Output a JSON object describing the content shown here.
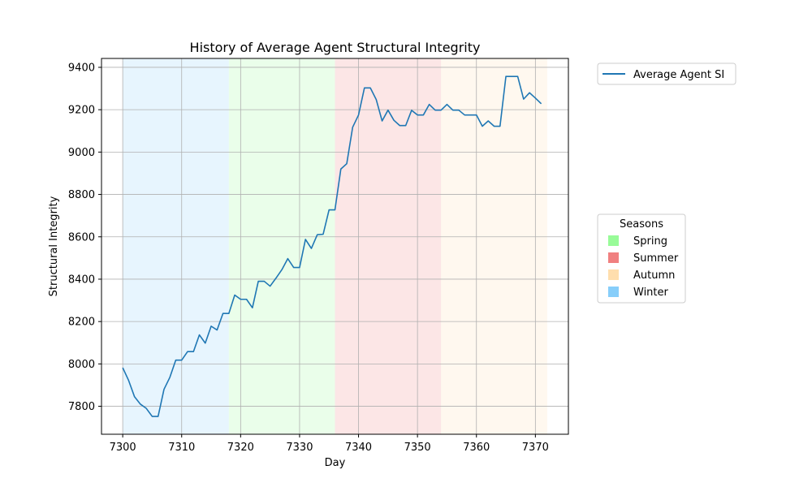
{
  "chart_data": {
    "type": "line",
    "title": "History of Average Agent Structural Integrity",
    "xlabel": "Day",
    "ylabel": "Structural Integrity",
    "xlim": [
      7296.4,
      7375.6
    ],
    "ylim": [
      7668,
      9442
    ],
    "xticks": [
      7300,
      7310,
      7320,
      7330,
      7340,
      7350,
      7360,
      7370
    ],
    "yticks": [
      7800,
      8000,
      8200,
      8400,
      8600,
      8800,
      9000,
      9200,
      9400
    ],
    "grid": true,
    "series": [
      {
        "name": "Average Agent SI",
        "color": "#1f77b4",
        "x": [
          7300,
          7301,
          7302,
          7303,
          7304,
          7305,
          7306,
          7307,
          7308,
          7309,
          7310,
          7311,
          7312,
          7313,
          7314,
          7315,
          7316,
          7317,
          7318,
          7319,
          7320,
          7321,
          7322,
          7323,
          7324,
          7325,
          7326,
          7327,
          7328,
          7329,
          7330,
          7331,
          7332,
          7333,
          7334,
          7335,
          7336,
          7337,
          7338,
          7339,
          7340,
          7341,
          7342,
          7343,
          7344,
          7345,
          7346,
          7347,
          7348,
          7349,
          7350,
          7351,
          7352,
          7353,
          7354,
          7355,
          7356,
          7357,
          7358,
          7359,
          7360,
          7361,
          7362,
          7363,
          7364,
          7365,
          7366,
          7367,
          7368,
          7369,
          7370,
          7371
        ],
        "y": [
          7982,
          7922,
          7845,
          7810,
          7790,
          7752,
          7752,
          7880,
          7937,
          8018,
          8018,
          8058,
          8058,
          8137,
          8098,
          8178,
          8160,
          8238,
          8238,
          8325,
          8305,
          8305,
          8265,
          8390,
          8390,
          8367,
          8405,
          8445,
          8497,
          8455,
          8455,
          8588,
          8545,
          8610,
          8612,
          8727,
          8727,
          8920,
          8945,
          9117,
          9175,
          9303,
          9303,
          9248,
          9147,
          9198,
          9150,
          9125,
          9125,
          9197,
          9175,
          9175,
          9225,
          9198,
          9198,
          9225,
          9198,
          9198,
          9175,
          9175,
          9175,
          9122,
          9147,
          9122,
          9122,
          9357,
          9357,
          9357,
          9250,
          9280,
          9255,
          9228
        ]
      }
    ],
    "seasons": [
      {
        "name": "Winter",
        "start": 7300,
        "end": 7318,
        "color": "#87cefa"
      },
      {
        "name": "Spring",
        "start": 7318,
        "end": 7336,
        "color": "#98fb98"
      },
      {
        "name": "Summer",
        "start": 7336,
        "end": 7354,
        "color": "#f08080"
      },
      {
        "name": "Autumn",
        "start": 7354,
        "end": 7372,
        "color": "#ffdead"
      }
    ],
    "legend_series": {
      "placement": "outside-top-right",
      "entries": [
        {
          "label": "Average Agent SI",
          "color": "#1f77b4"
        }
      ]
    },
    "legend_seasons": {
      "title": "Seasons",
      "placement": "outside-right",
      "entries": [
        {
          "label": "Spring",
          "color": "#98fb98"
        },
        {
          "label": "Summer",
          "color": "#f08080"
        },
        {
          "label": "Autumn",
          "color": "#ffdead"
        },
        {
          "label": "Winter",
          "color": "#87cefa"
        }
      ]
    }
  }
}
